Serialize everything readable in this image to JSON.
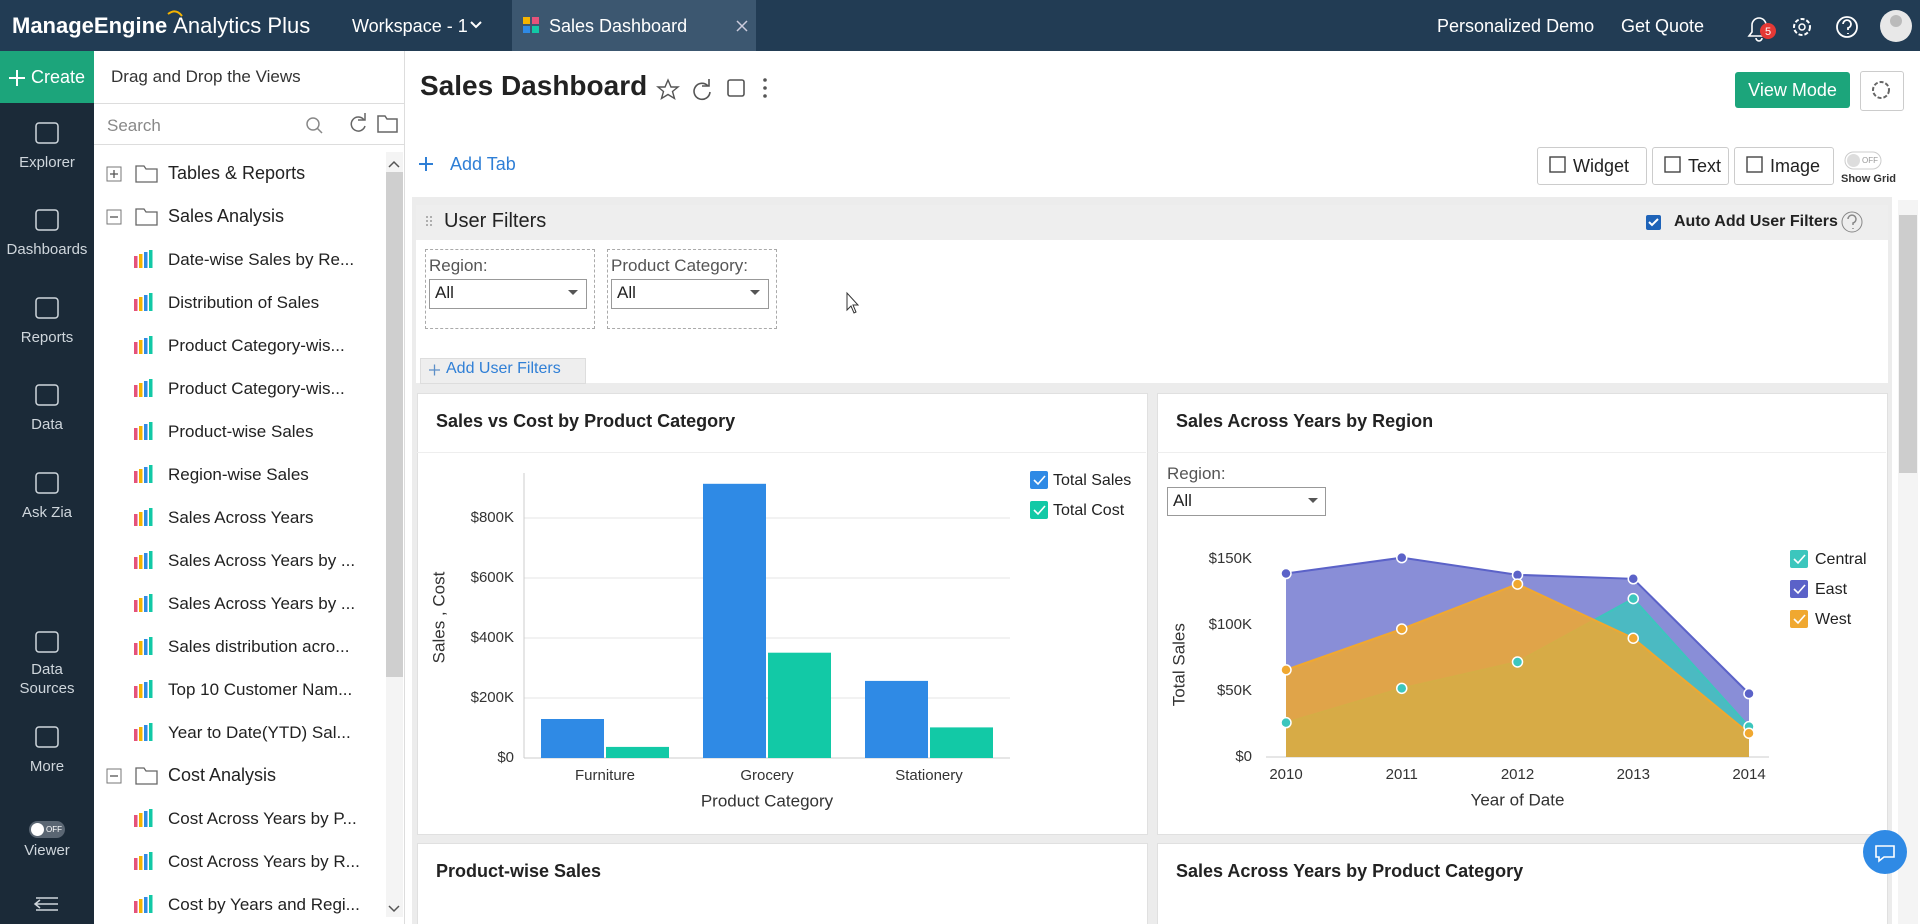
{
  "header": {
    "brand": "ManageEngine",
    "product": "Analytics Plus",
    "workspace": "Workspace - 1",
    "tab": "Sales Dashboard",
    "links": [
      "Personalized Demo",
      "Get Quote"
    ],
    "notifications": 5
  },
  "nav": {
    "create": "Create",
    "items": [
      "Explorer",
      "Dashboards",
      "Reports",
      "Data",
      "Ask Zia",
      "Data Sources",
      "More",
      "Viewer"
    ],
    "toggle": "OFF"
  },
  "explorer": {
    "title": "Drag and Drop the Views",
    "search": "Search",
    "tree": [
      {
        "label": "Tables & Reports",
        "children": []
      },
      {
        "label": "Sales Analysis",
        "children": [
          "Date-wise Sales by Re...",
          "Distribution of Sales",
          "Product Category-wis...",
          "Product Category-wis...",
          "Product-wise Sales",
          "Region-wise Sales",
          "Sales Across Years",
          "Sales Across Years by ...",
          "Sales Across Years by ...",
          "Sales distribution acro...",
          "Top 10 Customer Nam...",
          "Year to Date(YTD) Sal..."
        ]
      },
      {
        "label": "Cost Analysis",
        "children": [
          "Cost Across Years by P...",
          "Cost Across Years by R...",
          "Cost by Years and Regi..."
        ]
      }
    ]
  },
  "dashboard": {
    "title": "Sales Dashboard",
    "view_mode": "View Mode",
    "add_tab": "Add Tab",
    "tools": [
      "Widget",
      "Text",
      "Image"
    ],
    "grid_toggle": "OFF",
    "grid_label": "Show Grid",
    "filters": {
      "title": "User Filters",
      "auto": "Auto Add User Filters",
      "fields": [
        {
          "label": "Region:",
          "value": "All"
        },
        {
          "label": "Product Category:",
          "value": "All"
        }
      ],
      "add": "Add User Filters"
    },
    "more_widgets": [
      "Product-wise Sales",
      "Sales Across Years by Product Category"
    ]
  },
  "chart_data": [
    {
      "type": "bar",
      "title": "Sales vs Cost by Product Category",
      "x_label": "Product Category",
      "y_label": "Sales , Cost",
      "categories": [
        "Furniture",
        "Grocery",
        "Stationery"
      ],
      "series": [
        {
          "name": "Total Sales",
          "color": "#2f8ae5",
          "values": [
            130000,
            914000,
            257000
          ]
        },
        {
          "name": "Total Cost",
          "color": "#12c9a6",
          "values": [
            37000,
            351000,
            102000
          ]
        }
      ],
      "ylim": [
        0,
        950000
      ],
      "yticks": [
        {
          "value": 0,
          "label": "$0"
        },
        {
          "value": 200000,
          "label": "$200K"
        },
        {
          "value": 400000,
          "label": "$400K"
        },
        {
          "value": 600000,
          "label": "$600K"
        },
        {
          "value": 800000,
          "label": "$800K"
        }
      ],
      "grid": true
    },
    {
      "type": "area",
      "title": "Sales Across Years by Region",
      "filter_label": "Region:",
      "filter_value": "All",
      "x_label": "Year of Date",
      "y_label": "Total Sales",
      "x": [
        2010,
        2011,
        2012,
        2013,
        2014
      ],
      "xlim": [
        2010,
        2014
      ],
      "xticks": [
        2010,
        2011,
        2012,
        2013,
        2014
      ],
      "series": [
        {
          "name": "Central",
          "color": "#3cc6bd",
          "values": [
            26000,
            52000,
            72000,
            120000,
            23000
          ]
        },
        {
          "name": "East",
          "color": "#5b62c8",
          "values": [
            139000,
            151000,
            138000,
            135000,
            48000
          ]
        },
        {
          "name": "West",
          "color": "#f0a830",
          "values": [
            66000,
            97000,
            131000,
            90000,
            18000
          ]
        }
      ],
      "ylim": [
        0,
        155000
      ],
      "yticks": [
        {
          "value": 0,
          "label": "$0"
        },
        {
          "value": 50000,
          "label": "$50K"
        },
        {
          "value": 100000,
          "label": "$100K"
        },
        {
          "value": 150000,
          "label": "$150K"
        }
      ],
      "grid": false
    }
  ]
}
